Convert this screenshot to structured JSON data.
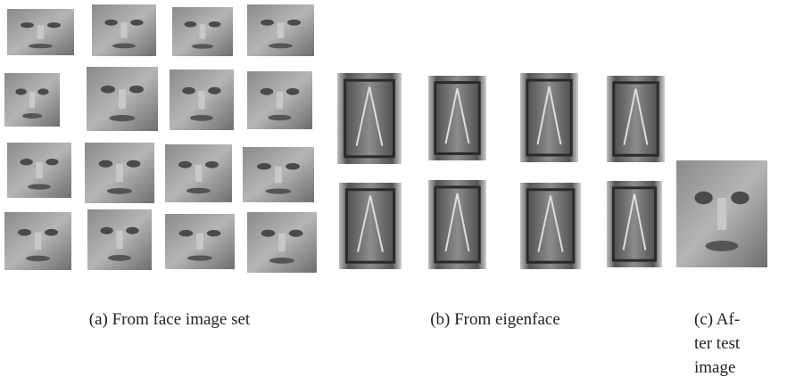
{
  "figure": {
    "captions": {
      "a": "(a) From face image set",
      "b": "(b) From eigenface",
      "c": [
        "(c) Af-",
        "ter test",
        "image"
      ]
    }
  }
}
